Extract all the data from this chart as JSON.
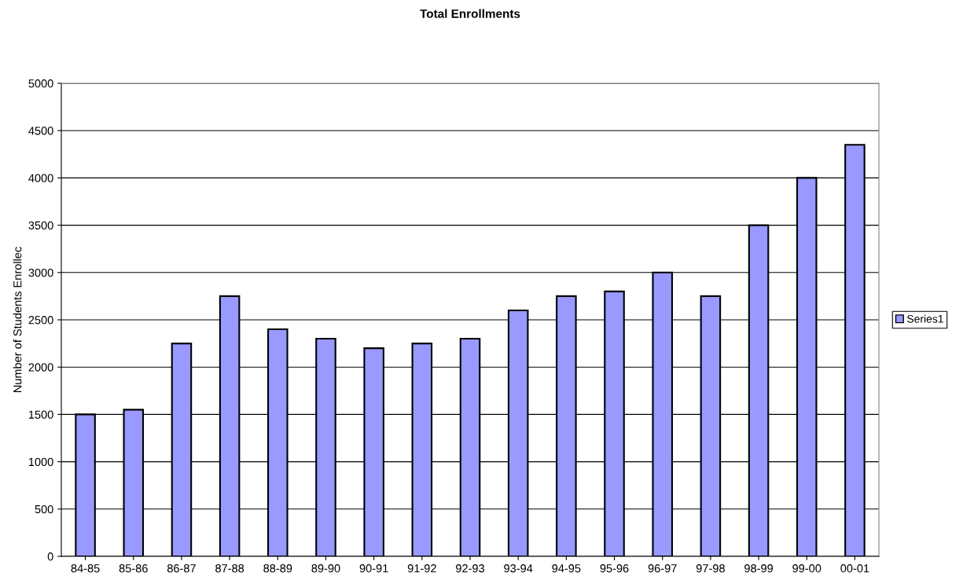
{
  "chart_data": {
    "type": "bar",
    "title": "Total Enrollments",
    "ylabel": "Number of Students Enrollec",
    "categories": [
      "84-85",
      "85-86",
      "86-87",
      "87-88",
      "88-89",
      "89-90",
      "90-91",
      "91-92",
      "92-93",
      "93-94",
      "94-95",
      "95-96",
      "96-97",
      "97-98",
      "98-99",
      "99-00",
      "00-01"
    ],
    "series": [
      {
        "name": "Series1",
        "color": "#9999ff",
        "values": [
          1500,
          1550,
          2250,
          2750,
          2400,
          2300,
          2200,
          2250,
          2300,
          2600,
          2750,
          2800,
          3000,
          2750,
          3500,
          4000,
          4350
        ]
      }
    ],
    "ylim": [
      0,
      5000
    ],
    "yticks": [
      0,
      500,
      1000,
      1500,
      2000,
      2500,
      3000,
      3500,
      4000,
      4500,
      5000
    ],
    "grid": "y",
    "legend": "right"
  }
}
